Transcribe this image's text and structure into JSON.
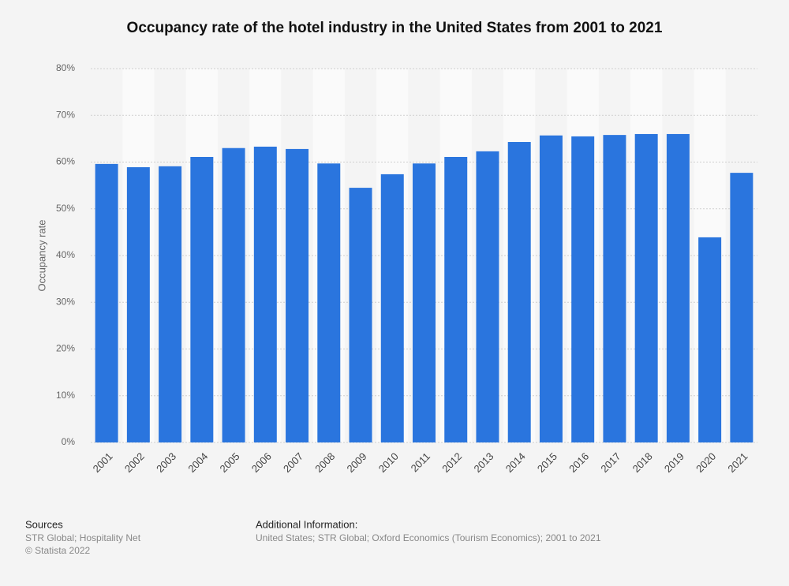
{
  "chart_data": {
    "type": "bar",
    "title": "Occupancy rate of the hotel industry in the United States from 2001 to 2021",
    "y_label": "Occupancy rate",
    "categories": [
      "2001",
      "2002",
      "2003",
      "2004",
      "2005",
      "2006",
      "2007",
      "2008",
      "2009",
      "2010",
      "2011",
      "2012",
      "2013",
      "2014",
      "2015",
      "2016",
      "2017",
      "2018",
      "2019",
      "2020",
      "2021"
    ],
    "values": [
      59.6,
      58.9,
      59.1,
      61.1,
      63.0,
      63.3,
      62.8,
      59.7,
      54.5,
      57.4,
      59.7,
      61.1,
      62.3,
      64.3,
      65.7,
      65.5,
      65.8,
      66.0,
      66.0,
      43.9,
      57.7
    ],
    "color": "#2a75de",
    "ylim": [
      0,
      80
    ],
    "yticks": [
      {
        "value": 0,
        "label": "0%"
      },
      {
        "value": 10,
        "label": "10%"
      },
      {
        "value": 20,
        "label": "20%"
      },
      {
        "value": 30,
        "label": "30%"
      },
      {
        "value": 40,
        "label": "40%"
      },
      {
        "value": 50,
        "label": "50%"
      },
      {
        "value": 60,
        "label": "60%"
      },
      {
        "value": 70,
        "label": "70%"
      },
      {
        "value": 80,
        "label": "80%"
      }
    ],
    "grid": true
  },
  "footer": {
    "sources_title": "Sources",
    "sources": "STR Global; Hospitality Net",
    "copyright": "© Statista 2022",
    "info_title": "Additional Information:",
    "info": "United States; STR Global; Oxford Economics (Tourism Economics); 2001 to 2021"
  }
}
